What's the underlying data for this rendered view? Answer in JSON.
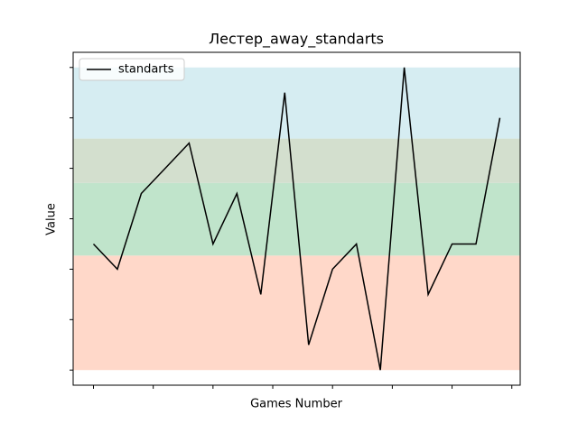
{
  "chart_data": {
    "type": "line",
    "title": "Лестер_away_standarts",
    "xlabel": "Games Number",
    "ylabel": "Value",
    "x": [
      0,
      1,
      2,
      3,
      4,
      5,
      6,
      7,
      8,
      9,
      10,
      11,
      12,
      13,
      14,
      15,
      16,
      17
    ],
    "series": [
      {
        "name": "standarts",
        "color": "#000000",
        "values": [
          2.5,
          2,
          3.5,
          4,
          4.5,
          2.5,
          3.5,
          1.5,
          5.5,
          0.5,
          2,
          2.5,
          0,
          6,
          1.5,
          2.5,
          2.5,
          5
        ]
      }
    ],
    "xlim": [
      -0.85,
      17.85
    ],
    "xticks": [
      0,
      2.5,
      5,
      7.5,
      10,
      12.5,
      15,
      17.5
    ],
    "ylim": [
      -0.3,
      6.3
    ],
    "yticks": [
      0,
      1,
      2,
      3,
      4,
      5,
      6
    ],
    "bands": [
      {
        "from": 0,
        "to": 2.27,
        "color": "#ffd8c9"
      },
      {
        "from": 2.27,
        "to": 3.71,
        "color": "#c0e4cb"
      },
      {
        "from": 3.71,
        "to": 4.59,
        "color": "#d3dfce"
      },
      {
        "from": 4.59,
        "to": 6,
        "color": "#d6edf2"
      }
    ],
    "legend": "upper left"
  }
}
